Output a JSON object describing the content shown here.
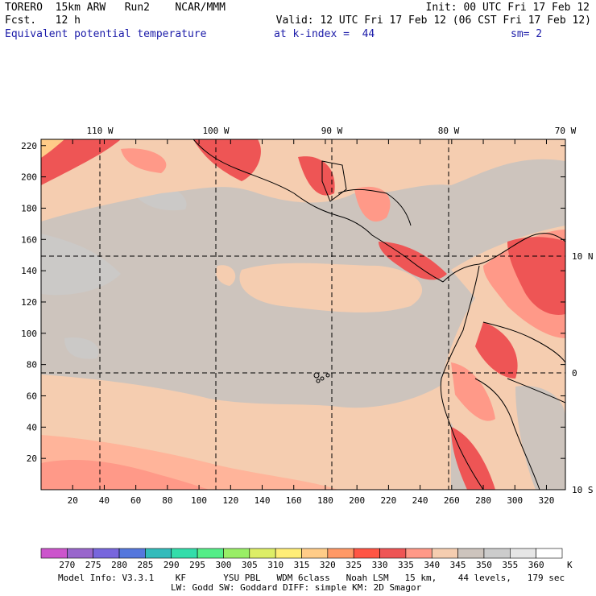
{
  "header": {
    "model": "TORERO  15km ARW   Run2    NCAR/MMM",
    "init": "Init: 00 UTC Fri 17 Feb 12",
    "fcst": "Fcst.   12 h",
    "valid": "Valid: 12 UTC Fri 17 Feb 12 (06 CST Fri 17 Feb 12)",
    "field": "Equivalent potential temperature",
    "level": "at k-index =  44",
    "smooth": "sm= 2"
  },
  "axes": {
    "x_ticks": [
      "20",
      "40",
      "60",
      "80",
      "100",
      "120",
      "140",
      "160",
      "180",
      "200",
      "220",
      "240",
      "260",
      "280",
      "300",
      "320"
    ],
    "y_ticks": [
      "20",
      "40",
      "60",
      "80",
      "100",
      "120",
      "140",
      "160",
      "180",
      "200",
      "220"
    ],
    "lon_labels": [
      "110 W",
      "100 W",
      "90 W",
      "80 W",
      "70 W"
    ],
    "lat_labels": [
      "10 N",
      "0",
      "10 S"
    ]
  },
  "legend": {
    "values": [
      "270",
      "275",
      "280",
      "285",
      "290",
      "295",
      "300",
      "305",
      "310",
      "315",
      "320",
      "325",
      "330",
      "335",
      "340",
      "345",
      "350",
      "355",
      "360"
    ],
    "unit": "K",
    "colors": [
      "#cc55cc",
      "#9966cc",
      "#7766dd",
      "#5577dd",
      "#33bbbb",
      "#33ddaa",
      "#55ee88",
      "#99ee66",
      "#ddee66",
      "#ffee77",
      "#ffcc88",
      "#ff9966",
      "#ff5544",
      "#ee5555",
      "#ff9988",
      "#f5cdb0",
      "#cdc4bd",
      "#cccccc",
      "#e6e6e6",
      "#ffffff"
    ]
  },
  "footer": {
    "line1": "Model Info: V3.3.1    KF       YSU PBL   WDM 6class   Noah LSM   15 km,    44 levels,   179 sec",
    "line2": "LW: Godd SW: Goddard DIFF: simple KM: 2D Smagor"
  }
}
